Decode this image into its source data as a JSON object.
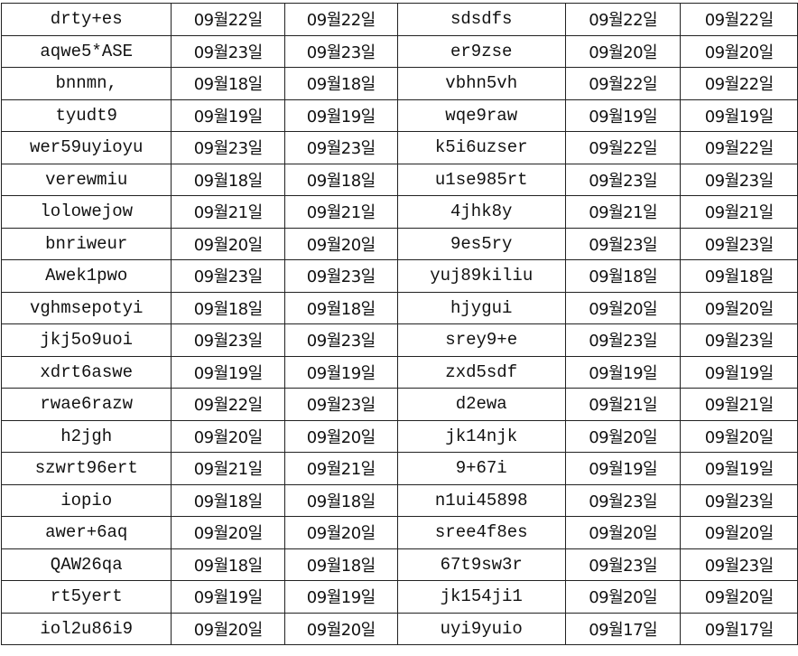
{
  "rows": [
    [
      "drty+es",
      "09월22일",
      "09월22일",
      "sdsdfs",
      "09월22일",
      "09월22일"
    ],
    [
      "aqwe5*ASE",
      "09월23일",
      "09월23일",
      "er9zse",
      "09월20일",
      "09월20일"
    ],
    [
      "bnnmn,",
      "09월18일",
      "09월18일",
      "vbhn5vh",
      "09월22일",
      "09월22일"
    ],
    [
      "tyudt9",
      "09월19일",
      "09월19일",
      "wqe9raw",
      "09월19일",
      "09월19일"
    ],
    [
      "wer59uyioyu",
      "09월23일",
      "09월23일",
      "k5i6uzser",
      "09월22일",
      "09월22일"
    ],
    [
      "verewmiu",
      "09월18일",
      "09월18일",
      "u1se985rt",
      "09월23일",
      "09월23일"
    ],
    [
      "lolowejow",
      "09월21일",
      "09월21일",
      "4jhk8y",
      "09월21일",
      "09월21일"
    ],
    [
      "bnriweur",
      "09월20일",
      "09월20일",
      "9es5ry",
      "09월23일",
      "09월23일"
    ],
    [
      "Awek1pwo",
      "09월23일",
      "09월23일",
      "yuj89kiliu",
      "09월18일",
      "09월18일"
    ],
    [
      "vghmsepotyi",
      "09월18일",
      "09월18일",
      "hjygui",
      "09월20일",
      "09월20일"
    ],
    [
      "jkj5o9uoi",
      "09월23일",
      "09월23일",
      "srey9+e",
      "09월23일",
      "09월23일"
    ],
    [
      "xdrt6aswe",
      "09월19일",
      "09월19일",
      "zxd5sdf",
      "09월19일",
      "09월19일"
    ],
    [
      "rwae6razw",
      "09월22일",
      "09월23일",
      "d2ewa",
      "09월21일",
      "09월21일"
    ],
    [
      "h2jgh",
      "09월20일",
      "09월20일",
      "jk14njk",
      "09월20일",
      "09월20일"
    ],
    [
      "szwrt96ert",
      "09월21일",
      "09월21일",
      "9+67i",
      "09월19일",
      "09월19일"
    ],
    [
      "iopio",
      "09월18일",
      "09월18일",
      "n1ui45898",
      "09월23일",
      "09월23일"
    ],
    [
      "awer+6aq",
      "09월20일",
      "09월20일",
      "sree4f8es",
      "09월20일",
      "09월20일"
    ],
    [
      "QAW26qa",
      "09월18일",
      "09월18일",
      "67t9sw3r",
      "09월23일",
      "09월23일"
    ],
    [
      "rt5yert",
      "09월19일",
      "09월19일",
      "jk154ji1",
      "09월20일",
      "09월20일"
    ],
    [
      "iol2u86i9",
      "09월20일",
      "09월20일",
      "uyi9yuio",
      "09월17일",
      "09월17일"
    ]
  ]
}
